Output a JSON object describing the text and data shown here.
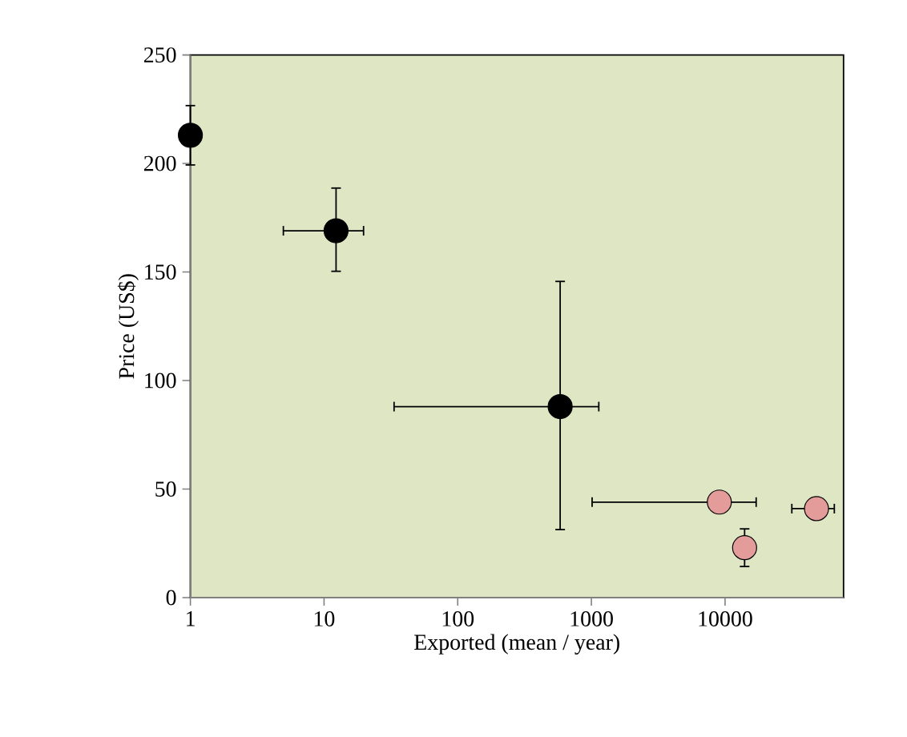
{
  "chart_data": {
    "type": "scatter",
    "xlabel": "Exported (mean / year)",
    "ylabel": "Price (US$)",
    "log": "x",
    "marker": "circle",
    "xlim": [
      1,
      77000
    ],
    "ylim": [
      0,
      250
    ],
    "xticks": [
      1,
      10,
      100,
      1000,
      10000
    ],
    "yticks": [
      0,
      50,
      100,
      150,
      200,
      250
    ],
    "series": [
      {
        "color": "#000000",
        "x": [
          1,
          12.3,
          584
        ],
        "values": [
          213,
          169,
          88
        ],
        "errors": [
          [
            199,
            227
          ],
          [
            150,
            189
          ],
          [
            31,
            146
          ]
        ],
        "xerrors": [
          null,
          [
            4.9,
            20
          ],
          [
            33,
            1150
          ]
        ]
      },
      {
        "color": "#e39c9a",
        "x": [
          9060,
          14000,
          48300
        ],
        "values": [
          44,
          23,
          41
        ],
        "errors": [
          null,
          [
            14,
            32
          ],
          null
        ],
        "xerrors": [
          [
            1000,
            17300
          ],
          null,
          [
            31200,
            66500
          ]
        ]
      }
    ]
  }
}
